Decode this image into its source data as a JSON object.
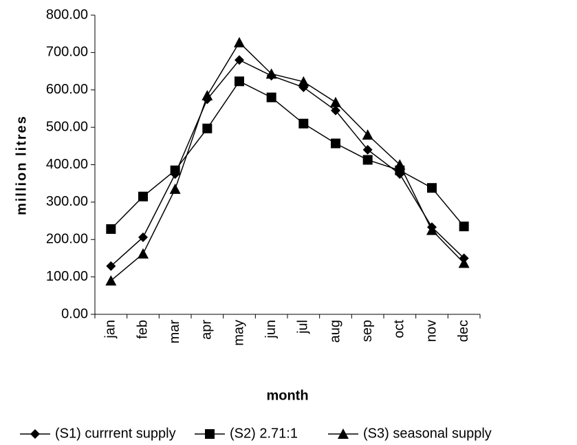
{
  "chart_data": {
    "type": "line",
    "xlabel": "month",
    "ylabel": "million litres",
    "categories": [
      "jan",
      "feb",
      "mar",
      "apr",
      "may",
      "jun",
      "jul",
      "aug",
      "sep",
      "oct",
      "nov",
      "dec"
    ],
    "series": [
      {
        "name": "(S1) currrent supply",
        "color": "#000000",
        "marker": "diamond",
        "values": [
          129,
          206,
          375,
          575,
          680,
          638,
          607,
          545,
          440,
          375,
          233,
          150
        ]
      },
      {
        "name": "(S2) 2.71:1",
        "color": "#000000",
        "marker": "square",
        "values": [
          228,
          315,
          385,
          497,
          623,
          580,
          510,
          457,
          413,
          385,
          338,
          235
        ]
      },
      {
        "name": "(S3) seasonal supply",
        "color": "#000000",
        "marker": "triangle",
        "values": [
          90,
          162,
          335,
          585,
          727,
          643,
          622,
          567,
          480,
          400,
          225,
          137
        ]
      }
    ],
    "ylim": [
      0,
      800
    ],
    "yticks": [
      {
        "value": 0,
        "label": "0.00"
      },
      {
        "value": 100,
        "label": "100.00"
      },
      {
        "value": 200,
        "label": "200.00"
      },
      {
        "value": 300,
        "label": "300.00"
      },
      {
        "value": 400,
        "label": "400.00"
      },
      {
        "value": 500,
        "label": "500.00"
      },
      {
        "value": 600,
        "label": "600.00"
      },
      {
        "value": 700,
        "label": "700.00"
      },
      {
        "value": 800,
        "label": "800.00"
      }
    ],
    "grid": false,
    "legend": "bottom"
  }
}
